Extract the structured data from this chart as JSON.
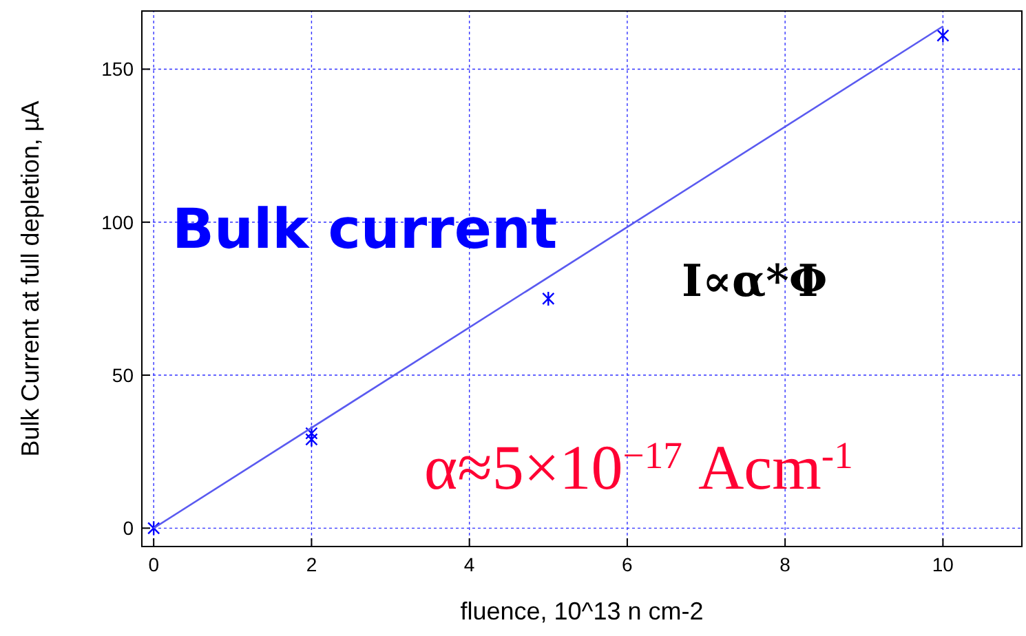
{
  "chart_data": {
    "type": "scatter",
    "xlabel": "fluence, 10^13 n cm-2",
    "ylabel": "Bulk Current at full depletion, µA",
    "xlim": [
      -0.15,
      11
    ],
    "ylim": [
      -6,
      169
    ],
    "xticks": [
      0,
      2,
      4,
      6,
      8,
      10
    ],
    "yticks": [
      0,
      50,
      100,
      150
    ],
    "grid": true,
    "series": [
      {
        "marker": "cross",
        "color": "#0000ff",
        "x": [
          0,
          2,
          2,
          5,
          10
        ],
        "values": [
          0,
          29,
          31,
          75,
          161
        ]
      },
      {
        "type": "line",
        "marker": "none",
        "color": "#5a5af0",
        "x": [
          0,
          10
        ],
        "values": [
          0,
          164
        ]
      }
    ],
    "annotations": [
      "Bulk current",
      "I∝α*Φ",
      "α≈5×10$^{−17}$ Acm$^{-1}$"
    ]
  }
}
